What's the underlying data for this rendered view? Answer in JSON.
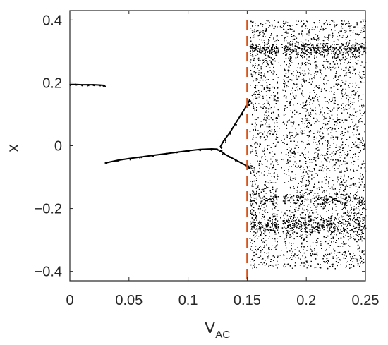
{
  "chart_data": {
    "type": "scatter",
    "title": "",
    "xlabel": {
      "main": "V",
      "sub": "AC"
    },
    "ylabel": "x",
    "xlim": [
      0,
      0.25
    ],
    "ylim": [
      -0.43,
      0.43
    ],
    "x_ticks": [
      0,
      0.05,
      0.1,
      0.15,
      0.2,
      0.25
    ],
    "x_tick_labels": [
      "0",
      "0.05",
      "0.1",
      "0.15",
      "0.2",
      "0.25"
    ],
    "y_ticks": [
      -0.4,
      -0.2,
      0,
      0.2,
      0.4
    ],
    "y_tick_labels": [
      "−0.4",
      "−0.2",
      "0",
      "0.2",
      "0.4"
    ],
    "grid": false,
    "box": true,
    "marker_color": "#000000",
    "reference_line": {
      "x": 0.15,
      "color": "#D95319",
      "style": "dashed"
    },
    "series": [
      {
        "segment": "fixed-point-upper",
        "points": [
          [
            0,
            0.195
          ],
          [
            0.005,
            0.195
          ],
          [
            0.01,
            0.194
          ],
          [
            0.015,
            0.194
          ],
          [
            0.02,
            0.194
          ],
          [
            0.025,
            0.193
          ],
          [
            0.029,
            0.192
          ]
        ]
      },
      {
        "segment": "fixed-point-lower",
        "points": [
          [
            0.03,
            -0.055
          ],
          [
            0.04,
            -0.047
          ],
          [
            0.05,
            -0.041
          ],
          [
            0.06,
            -0.036
          ],
          [
            0.07,
            -0.031
          ],
          [
            0.08,
            -0.026
          ],
          [
            0.09,
            -0.021
          ],
          [
            0.1,
            -0.016
          ],
          [
            0.11,
            -0.012
          ],
          [
            0.12,
            -0.01
          ],
          [
            0.125,
            -0.011
          ]
        ]
      },
      {
        "segment": "period-doubling-upper",
        "points": [
          [
            0.127,
            -0.005
          ],
          [
            0.13,
            0.015
          ],
          [
            0.135,
            0.04
          ],
          [
            0.14,
            0.07
          ],
          [
            0.145,
            0.1
          ],
          [
            0.15,
            0.13
          ],
          [
            0.152,
            0.145
          ]
        ]
      },
      {
        "segment": "period-doubling-lower",
        "points": [
          [
            0.127,
            -0.015
          ],
          [
            0.13,
            -0.025
          ],
          [
            0.135,
            -0.035
          ],
          [
            0.14,
            -0.045
          ],
          [
            0.145,
            -0.055
          ],
          [
            0.15,
            -0.065
          ],
          [
            0.152,
            -0.07
          ]
        ]
      },
      {
        "segment": "chaotic-region",
        "x_range": [
          0.152,
          0.25
        ],
        "y_range": [
          -0.39,
          0.4
        ]
      }
    ]
  }
}
